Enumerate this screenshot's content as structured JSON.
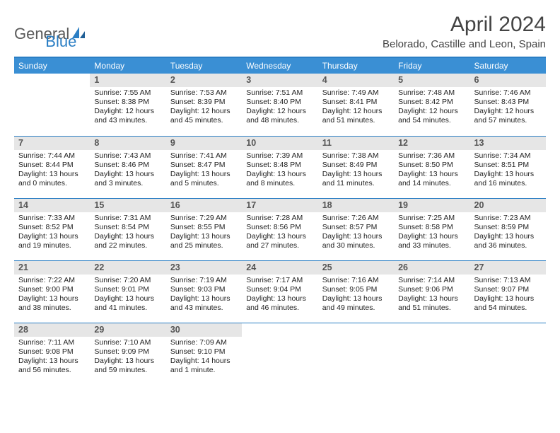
{
  "logo": {
    "general": "General",
    "blue": "Blue"
  },
  "title": "April 2024",
  "location": "Belorado, Castille and Leon, Spain",
  "colors": {
    "header_bg": "#3a8fd4",
    "border": "#2a7ec4",
    "daynum_bg": "#e6e6e6",
    "text": "#222222"
  },
  "day_labels": [
    "Sunday",
    "Monday",
    "Tuesday",
    "Wednesday",
    "Thursday",
    "Friday",
    "Saturday"
  ],
  "weeks": [
    [
      null,
      {
        "n": "1",
        "sr": "Sunrise: 7:55 AM",
        "ss": "Sunset: 8:38 PM",
        "dl": "Daylight: 12 hours and 43 minutes."
      },
      {
        "n": "2",
        "sr": "Sunrise: 7:53 AM",
        "ss": "Sunset: 8:39 PM",
        "dl": "Daylight: 12 hours and 45 minutes."
      },
      {
        "n": "3",
        "sr": "Sunrise: 7:51 AM",
        "ss": "Sunset: 8:40 PM",
        "dl": "Daylight: 12 hours and 48 minutes."
      },
      {
        "n": "4",
        "sr": "Sunrise: 7:49 AM",
        "ss": "Sunset: 8:41 PM",
        "dl": "Daylight: 12 hours and 51 minutes."
      },
      {
        "n": "5",
        "sr": "Sunrise: 7:48 AM",
        "ss": "Sunset: 8:42 PM",
        "dl": "Daylight: 12 hours and 54 minutes."
      },
      {
        "n": "6",
        "sr": "Sunrise: 7:46 AM",
        "ss": "Sunset: 8:43 PM",
        "dl": "Daylight: 12 hours and 57 minutes."
      }
    ],
    [
      {
        "n": "7",
        "sr": "Sunrise: 7:44 AM",
        "ss": "Sunset: 8:44 PM",
        "dl": "Daylight: 13 hours and 0 minutes."
      },
      {
        "n": "8",
        "sr": "Sunrise: 7:43 AM",
        "ss": "Sunset: 8:46 PM",
        "dl": "Daylight: 13 hours and 3 minutes."
      },
      {
        "n": "9",
        "sr": "Sunrise: 7:41 AM",
        "ss": "Sunset: 8:47 PM",
        "dl": "Daylight: 13 hours and 5 minutes."
      },
      {
        "n": "10",
        "sr": "Sunrise: 7:39 AM",
        "ss": "Sunset: 8:48 PM",
        "dl": "Daylight: 13 hours and 8 minutes."
      },
      {
        "n": "11",
        "sr": "Sunrise: 7:38 AM",
        "ss": "Sunset: 8:49 PM",
        "dl": "Daylight: 13 hours and 11 minutes."
      },
      {
        "n": "12",
        "sr": "Sunrise: 7:36 AM",
        "ss": "Sunset: 8:50 PM",
        "dl": "Daylight: 13 hours and 14 minutes."
      },
      {
        "n": "13",
        "sr": "Sunrise: 7:34 AM",
        "ss": "Sunset: 8:51 PM",
        "dl": "Daylight: 13 hours and 16 minutes."
      }
    ],
    [
      {
        "n": "14",
        "sr": "Sunrise: 7:33 AM",
        "ss": "Sunset: 8:52 PM",
        "dl": "Daylight: 13 hours and 19 minutes."
      },
      {
        "n": "15",
        "sr": "Sunrise: 7:31 AM",
        "ss": "Sunset: 8:54 PM",
        "dl": "Daylight: 13 hours and 22 minutes."
      },
      {
        "n": "16",
        "sr": "Sunrise: 7:29 AM",
        "ss": "Sunset: 8:55 PM",
        "dl": "Daylight: 13 hours and 25 minutes."
      },
      {
        "n": "17",
        "sr": "Sunrise: 7:28 AM",
        "ss": "Sunset: 8:56 PM",
        "dl": "Daylight: 13 hours and 27 minutes."
      },
      {
        "n": "18",
        "sr": "Sunrise: 7:26 AM",
        "ss": "Sunset: 8:57 PM",
        "dl": "Daylight: 13 hours and 30 minutes."
      },
      {
        "n": "19",
        "sr": "Sunrise: 7:25 AM",
        "ss": "Sunset: 8:58 PM",
        "dl": "Daylight: 13 hours and 33 minutes."
      },
      {
        "n": "20",
        "sr": "Sunrise: 7:23 AM",
        "ss": "Sunset: 8:59 PM",
        "dl": "Daylight: 13 hours and 36 minutes."
      }
    ],
    [
      {
        "n": "21",
        "sr": "Sunrise: 7:22 AM",
        "ss": "Sunset: 9:00 PM",
        "dl": "Daylight: 13 hours and 38 minutes."
      },
      {
        "n": "22",
        "sr": "Sunrise: 7:20 AM",
        "ss": "Sunset: 9:01 PM",
        "dl": "Daylight: 13 hours and 41 minutes."
      },
      {
        "n": "23",
        "sr": "Sunrise: 7:19 AM",
        "ss": "Sunset: 9:03 PM",
        "dl": "Daylight: 13 hours and 43 minutes."
      },
      {
        "n": "24",
        "sr": "Sunrise: 7:17 AM",
        "ss": "Sunset: 9:04 PM",
        "dl": "Daylight: 13 hours and 46 minutes."
      },
      {
        "n": "25",
        "sr": "Sunrise: 7:16 AM",
        "ss": "Sunset: 9:05 PM",
        "dl": "Daylight: 13 hours and 49 minutes."
      },
      {
        "n": "26",
        "sr": "Sunrise: 7:14 AM",
        "ss": "Sunset: 9:06 PM",
        "dl": "Daylight: 13 hours and 51 minutes."
      },
      {
        "n": "27",
        "sr": "Sunrise: 7:13 AM",
        "ss": "Sunset: 9:07 PM",
        "dl": "Daylight: 13 hours and 54 minutes."
      }
    ],
    [
      {
        "n": "28",
        "sr": "Sunrise: 7:11 AM",
        "ss": "Sunset: 9:08 PM",
        "dl": "Daylight: 13 hours and 56 minutes."
      },
      {
        "n": "29",
        "sr": "Sunrise: 7:10 AM",
        "ss": "Sunset: 9:09 PM",
        "dl": "Daylight: 13 hours and 59 minutes."
      },
      {
        "n": "30",
        "sr": "Sunrise: 7:09 AM",
        "ss": "Sunset: 9:10 PM",
        "dl": "Daylight: 14 hours and 1 minute."
      },
      null,
      null,
      null,
      null
    ]
  ]
}
